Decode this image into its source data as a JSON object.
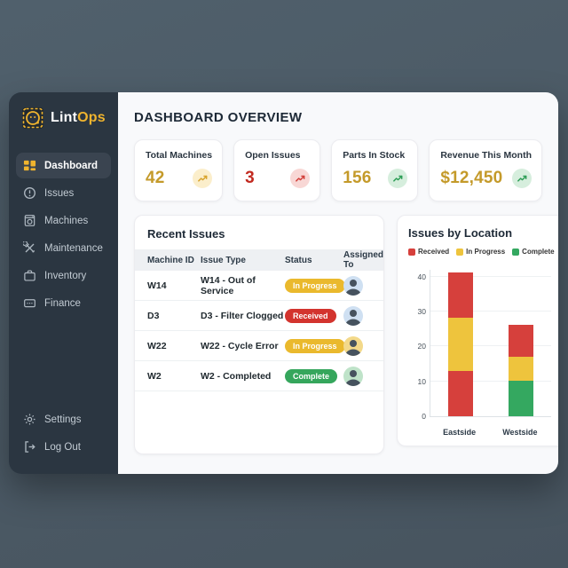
{
  "colors": {
    "page_background": "#4d5a66",
    "sidebar_background": "#2b3641",
    "sidebar_active_background": "#3a4450",
    "content_background": "#f8f9fb",
    "accent_gold": "#f0b42e",
    "accent_red": "#d3342e",
    "accent_green": "#35a65c",
    "title_text": "#1d2936"
  },
  "sidebar": {
    "brand": {
      "first": "Lint",
      "second": "Ops"
    },
    "items": [
      {
        "label": "Dashboard",
        "active": true
      },
      {
        "label": "Issues",
        "active": false
      },
      {
        "label": "Machines",
        "active": false
      },
      {
        "label": "Maintenance",
        "active": false
      },
      {
        "label": "Inventory",
        "active": false
      },
      {
        "label": "Finance",
        "active": false
      }
    ],
    "footer_items": [
      {
        "label": "Settings"
      },
      {
        "label": "Log Out"
      }
    ]
  },
  "header": {
    "title": "DASHBOARD OVERVIEW"
  },
  "stats": [
    {
      "label": "Total Machines",
      "value": "42",
      "value_color": "#c49a2a",
      "badge_bg": "#fbeecb",
      "trend_color": "#d8a32b",
      "trend": "up"
    },
    {
      "label": "Open Issues",
      "value": "3",
      "value_color": "#c22a20",
      "badge_bg": "#f8d7d5",
      "trend_color": "#d23f3a",
      "trend": "up"
    },
    {
      "label": "Parts In Stock",
      "value": "156",
      "value_color": "#c49a2a",
      "badge_bg": "#d6eedd",
      "trend_color": "#2f9e57",
      "trend": "up"
    },
    {
      "label": "Revenue This Month",
      "value": "$12,450",
      "value_color": "#c49a2a",
      "badge_bg": "#d6eedd",
      "trend_color": "#2f9e57",
      "trend": "up"
    }
  ],
  "recent_issues": {
    "title": "Recent Issues",
    "columns": [
      "Machine ID",
      "Issue Type",
      "Status",
      "Assigned To"
    ],
    "rows": [
      {
        "machine_id": "W14",
        "issue_type": "W14 - Out of Service",
        "status": "In Progress",
        "status_color": "#eab92d",
        "avatar_bg": "#cfe0f2"
      },
      {
        "machine_id": "D3",
        "issue_type": "D3 - Filter Clogged",
        "status": "Received",
        "status_color": "#d3342e",
        "avatar_bg": "#cfe0f2"
      },
      {
        "machine_id": "W22",
        "issue_type": "W22 - Cycle Error",
        "status": "In Progress",
        "status_color": "#eab92d",
        "avatar_bg": "#f3d98a"
      },
      {
        "machine_id": "W2",
        "issue_type": "W2 - Completed",
        "status": "Complete",
        "status_color": "#35a65c",
        "avatar_bg": "#bfe3c9"
      }
    ]
  },
  "chart_data": {
    "type": "bar",
    "subtype": "stacked_bar",
    "title": "Issues by Location",
    "legend": [
      {
        "label": "Received",
        "color": "#d6403c"
      },
      {
        "label": "In Progress",
        "color": "#eec43d"
      },
      {
        "label": "Complete",
        "color": "#34a860"
      }
    ],
    "categories": [
      "Eastside",
      "Westside"
    ],
    "ylim": [
      0,
      42
    ],
    "yticks": [
      0,
      10,
      20,
      30,
      40
    ],
    "grid": true,
    "legend_position": "top",
    "bars": [
      {
        "category": "Eastside",
        "total": 41,
        "segments_bottom_to_top": [
          {
            "series": "Received",
            "value": 13,
            "color": "#d6403c"
          },
          {
            "series": "In Progress",
            "value": 15,
            "color": "#eec43d"
          },
          {
            "series": "Received",
            "value": 13,
            "color": "#d6403c"
          }
        ]
      },
      {
        "category": "Westside",
        "total": 26,
        "segments_bottom_to_top": [
          {
            "series": "Complete",
            "value": 10,
            "color": "#34a860"
          },
          {
            "series": "In Progress",
            "value": 7,
            "color": "#eec43d"
          },
          {
            "series": "Received",
            "value": 9,
            "color": "#d6403c"
          }
        ]
      }
    ]
  }
}
